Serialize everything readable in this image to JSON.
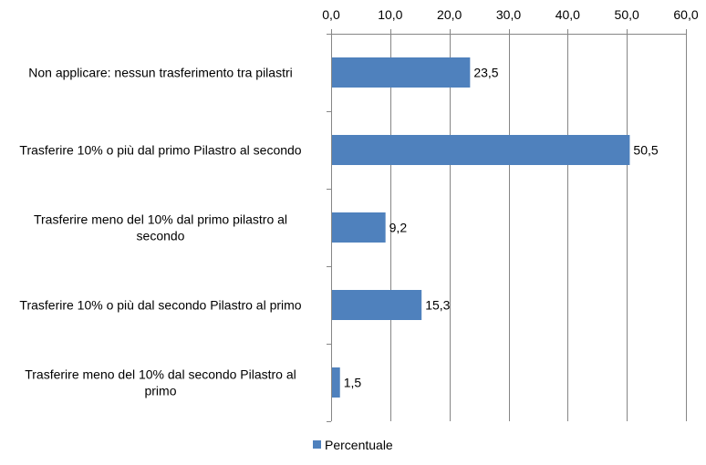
{
  "chart_data": {
    "type": "bar",
    "orientation": "horizontal",
    "categories": [
      "Non applicare: nessun trasferimento tra pilastri",
      "Trasferire 10% o più dal primo Pilastro al secondo",
      "Trasferire meno del 10% dal primo pilastro al secondo",
      "Trasferire 10% o più dal secondo Pilastro al primo",
      "Trasferire meno del 10% dal secondo Pilastro al primo"
    ],
    "category_lines": [
      [
        "Non applicare: nessun trasferimento tra pilastri"
      ],
      [
        "Trasferire 10% o più dal primo Pilastro al secondo"
      ],
      [
        "Trasferire meno del 10% dal primo pilastro al",
        "secondo"
      ],
      [
        "Trasferire 10% o più dal secondo Pilastro al primo"
      ],
      [
        "Trasferire meno del 10% dal secondo Pilastro al",
        "primo"
      ]
    ],
    "series": [
      {
        "name": "Percentuale",
        "values": [
          23.5,
          50.5,
          9.2,
          15.3,
          1.5
        ],
        "value_labels": [
          "23,5",
          "50,5",
          "9,2",
          "15,3",
          "1,5"
        ],
        "color": "#4F81BD"
      }
    ],
    "xlim": [
      0,
      60
    ],
    "x_ticks": [
      0,
      10,
      20,
      30,
      40,
      50,
      60
    ],
    "x_tick_labels": [
      "0,0",
      "10,0",
      "20,0",
      "30,0",
      "40,0",
      "50,0",
      "60,0"
    ],
    "x_axis_position": "top",
    "grid": true,
    "legend": "bottom",
    "title": "",
    "xlabel": "",
    "ylabel": ""
  },
  "colors": {
    "bar": "#4F81BD",
    "grid": "#868686",
    "axis": "#868686"
  }
}
